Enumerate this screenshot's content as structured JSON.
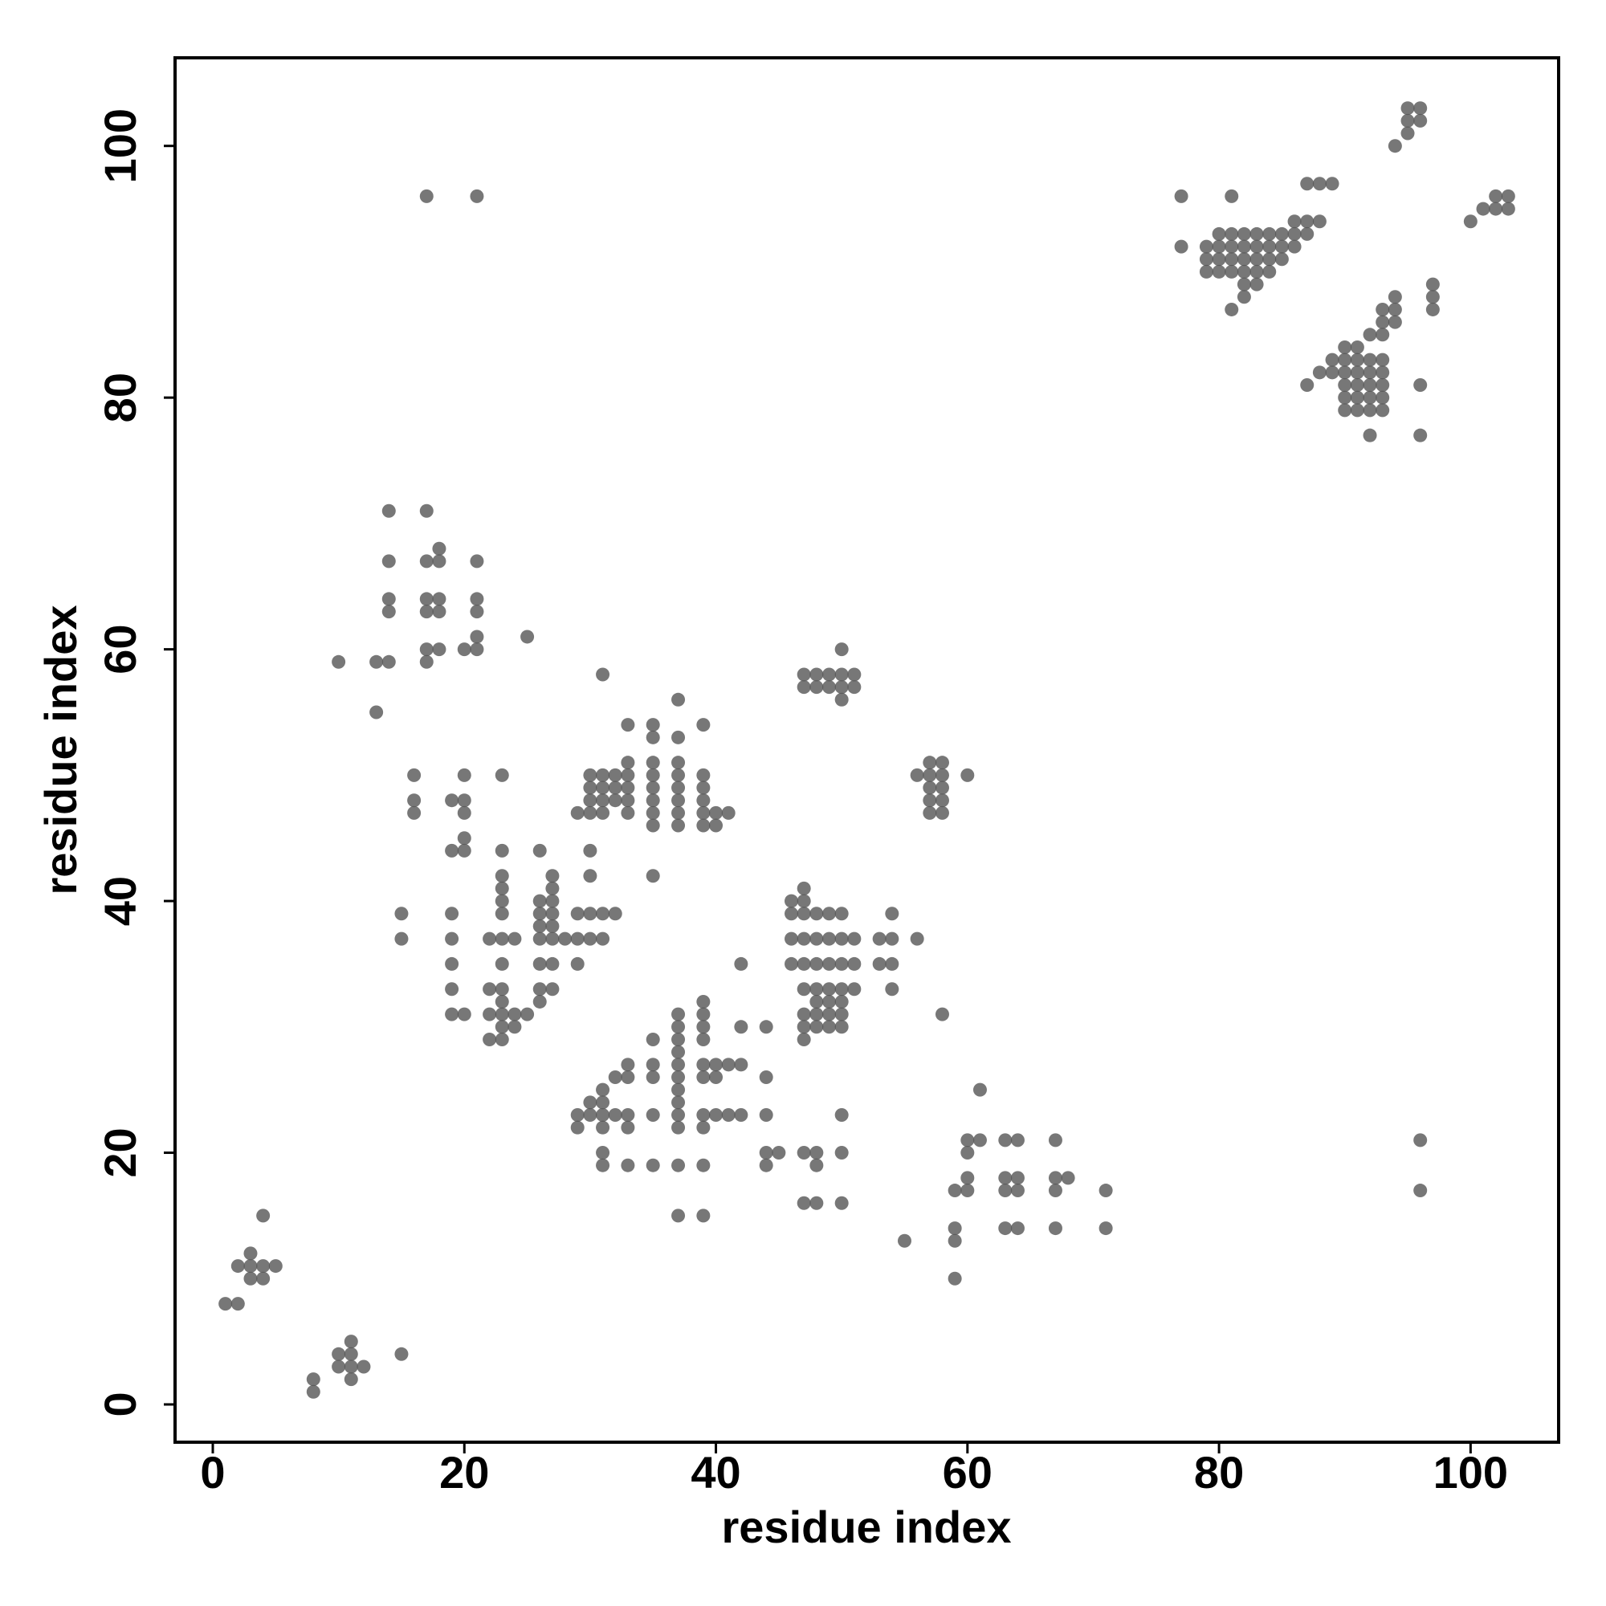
{
  "chart_data": {
    "type": "scatter",
    "xlabel": "residue index",
    "ylabel": "residue index",
    "xlim": [
      -3,
      107
    ],
    "ylim": [
      -3,
      107
    ],
    "xticks": [
      0,
      20,
      40,
      60,
      80,
      100
    ],
    "yticks": [
      0,
      20,
      40,
      60,
      80,
      100
    ],
    "color": "#555555",
    "opacity": 0.8,
    "x": [
      1,
      2,
      2,
      3,
      4,
      5,
      3,
      3,
      4,
      4,
      8,
      8,
      10,
      11,
      11,
      10,
      11,
      12,
      11,
      15,
      17,
      21,
      14,
      17,
      14,
      17,
      18,
      21,
      18,
      14,
      17,
      18,
      21,
      14,
      17,
      18,
      21,
      21,
      25,
      17,
      18,
      20,
      21,
      10,
      13,
      14,
      17,
      13,
      16,
      20,
      23,
      16,
      19,
      20,
      16,
      20,
      20,
      19,
      20,
      23,
      26,
      30,
      23,
      30,
      27,
      23,
      27,
      23,
      26,
      27,
      23,
      15,
      19,
      26,
      27,
      29,
      30,
      31,
      32,
      15,
      19,
      22,
      23,
      24,
      26,
      27,
      28,
      29,
      30,
      31,
      19,
      23,
      26,
      27,
      29,
      19,
      22,
      23,
      26,
      27,
      23,
      26,
      19,
      20,
      22,
      23,
      24,
      25,
      23,
      24,
      22,
      23,
      26,
      27,
      31,
      33,
      35,
      37,
      39,
      35,
      37,
      33,
      35,
      37,
      30,
      31,
      32,
      33,
      35,
      37,
      39,
      30,
      31,
      32,
      33,
      35,
      37,
      39,
      30,
      31,
      32,
      33,
      35,
      37,
      39,
      29,
      30,
      31,
      33,
      35,
      37,
      39,
      40,
      41,
      35,
      37,
      39,
      40,
      35,
      37,
      39,
      37,
      39,
      37,
      39,
      42,
      44,
      35,
      37,
      39,
      33,
      35,
      37,
      39,
      40,
      41,
      42,
      32,
      33,
      35,
      37,
      39,
      40,
      44,
      31,
      37,
      30,
      31,
      37,
      29,
      30,
      31,
      32,
      33,
      35,
      37,
      39,
      40,
      41,
      42,
      44,
      29,
      31,
      33,
      37,
      39,
      31,
      44,
      45,
      31,
      33,
      35,
      37,
      39,
      44,
      37,
      39,
      42,
      47,
      46,
      47,
      46,
      47,
      48,
      49,
      50,
      54,
      46,
      47,
      48,
      49,
      50,
      51,
      53,
      54,
      56,
      46,
      47,
      48,
      49,
      50,
      51,
      53,
      54,
      47,
      48,
      49,
      50,
      51,
      54,
      48,
      49,
      50,
      47,
      48,
      49,
      50,
      58,
      47,
      48,
      49,
      50,
      47,
      47,
      48,
      50,
      48,
      47,
      48,
      50,
      50,
      47,
      48,
      49,
      50,
      51,
      47,
      48,
      49,
      50,
      51,
      50,
      50,
      57,
      58,
      56,
      57,
      58,
      60,
      57,
      58,
      57,
      58,
      57,
      58,
      61,
      60,
      61,
      63,
      64,
      67,
      60,
      60,
      63,
      64,
      67,
      68,
      59,
      60,
      63,
      64,
      67,
      71,
      59,
      63,
      64,
      67,
      71,
      55,
      59,
      59,
      96,
      96,
      77,
      81,
      87,
      88,
      89,
      86,
      87,
      88,
      80,
      81,
      82,
      83,
      84,
      85,
      86,
      87,
      77,
      79,
      80,
      81,
      82,
      83,
      84,
      85,
      86,
      79,
      80,
      81,
      82,
      83,
      84,
      85,
      79,
      80,
      81,
      82,
      83,
      84,
      82,
      83,
      82,
      81,
      94,
      95,
      95,
      96,
      95,
      96,
      100,
      101,
      102,
      103,
      102,
      103,
      87,
      88,
      89,
      89,
      90,
      91,
      92,
      93,
      93,
      94,
      93,
      94,
      94,
      97,
      97,
      97,
      90,
      91,
      92,
      93,
      90,
      91,
      92,
      93,
      90,
      91,
      92,
      93,
      90,
      91,
      92,
      93,
      90,
      91,
      92,
      93,
      92,
      96,
      96
    ],
    "values": [
      8,
      8,
      11,
      11,
      11,
      11,
      12,
      10,
      10,
      15,
      2,
      1,
      4,
      4,
      5,
      3,
      3,
      3,
      2,
      4,
      96,
      96,
      71,
      71,
      67,
      67,
      67,
      67,
      68,
      64,
      64,
      64,
      64,
      63,
      63,
      63,
      63,
      61,
      61,
      60,
      60,
      60,
      60,
      59,
      59,
      59,
      59,
      55,
      50,
      50,
      50,
      48,
      48,
      48,
      47,
      47,
      45,
      44,
      44,
      44,
      44,
      44,
      42,
      42,
      42,
      41,
      41,
      40,
      40,
      40,
      39,
      39,
      39,
      39,
      39,
      39,
      39,
      39,
      39,
      37,
      37,
      37,
      37,
      37,
      37,
      37,
      37,
      37,
      37,
      37,
      35,
      35,
      35,
      35,
      35,
      33,
      33,
      33,
      33,
      33,
      32,
      32,
      31,
      31,
      31,
      31,
      31,
      31,
      30,
      30,
      29,
      29,
      38,
      38,
      58,
      54,
      54,
      56,
      54,
      53,
      53,
      51,
      51,
      51,
      50,
      50,
      50,
      50,
      50,
      50,
      50,
      49,
      49,
      49,
      49,
      49,
      49,
      49,
      48,
      48,
      48,
      48,
      48,
      48,
      48,
      47,
      47,
      47,
      47,
      47,
      47,
      47,
      47,
      47,
      46,
      46,
      46,
      46,
      42,
      31,
      32,
      30,
      31,
      29,
      30,
      30,
      30,
      29,
      28,
      29,
      27,
      27,
      27,
      27,
      27,
      27,
      27,
      26,
      26,
      26,
      26,
      26,
      26,
      26,
      25,
      25,
      24,
      24,
      24,
      23,
      23,
      23,
      23,
      23,
      23,
      23,
      23,
      23,
      23,
      23,
      23,
      22,
      22,
      22,
      22,
      22,
      20,
      20,
      20,
      19,
      19,
      19,
      19,
      19,
      19,
      15,
      15,
      35,
      41,
      40,
      40,
      39,
      39,
      39,
      39,
      39,
      39,
      37,
      37,
      37,
      37,
      37,
      37,
      37,
      37,
      37,
      35,
      35,
      35,
      35,
      35,
      35,
      35,
      35,
      33,
      33,
      33,
      33,
      33,
      33,
      32,
      32,
      32,
      31,
      31,
      31,
      31,
      31,
      30,
      30,
      30,
      30,
      29,
      20,
      20,
      20,
      19,
      16,
      16,
      16,
      23,
      58,
      58,
      58,
      58,
      58,
      57,
      57,
      57,
      57,
      57,
      60,
      56,
      51,
      51,
      50,
      50,
      50,
      50,
      49,
      49,
      48,
      48,
      47,
      47,
      25,
      21,
      21,
      21,
      21,
      21,
      20,
      18,
      18,
      18,
      18,
      18,
      17,
      17,
      17,
      17,
      17,
      17,
      14,
      14,
      14,
      14,
      14,
      13,
      13,
      10,
      21,
      17,
      96,
      96,
      97,
      97,
      97,
      94,
      94,
      94,
      93,
      93,
      93,
      93,
      93,
      93,
      93,
      93,
      92,
      92,
      92,
      92,
      92,
      92,
      92,
      92,
      92,
      91,
      91,
      91,
      91,
      91,
      91,
      91,
      90,
      90,
      90,
      90,
      90,
      90,
      89,
      89,
      88,
      87,
      100,
      101,
      102,
      102,
      103,
      103,
      94,
      95,
      95,
      95,
      96,
      96,
      81,
      82,
      82,
      83,
      84,
      84,
      85,
      85,
      86,
      86,
      87,
      87,
      88,
      89,
      88,
      87,
      83,
      83,
      83,
      83,
      82,
      82,
      82,
      82,
      81,
      81,
      81,
      81,
      80,
      80,
      80,
      80,
      79,
      79,
      79,
      79,
      77,
      77,
      81
    ]
  }
}
